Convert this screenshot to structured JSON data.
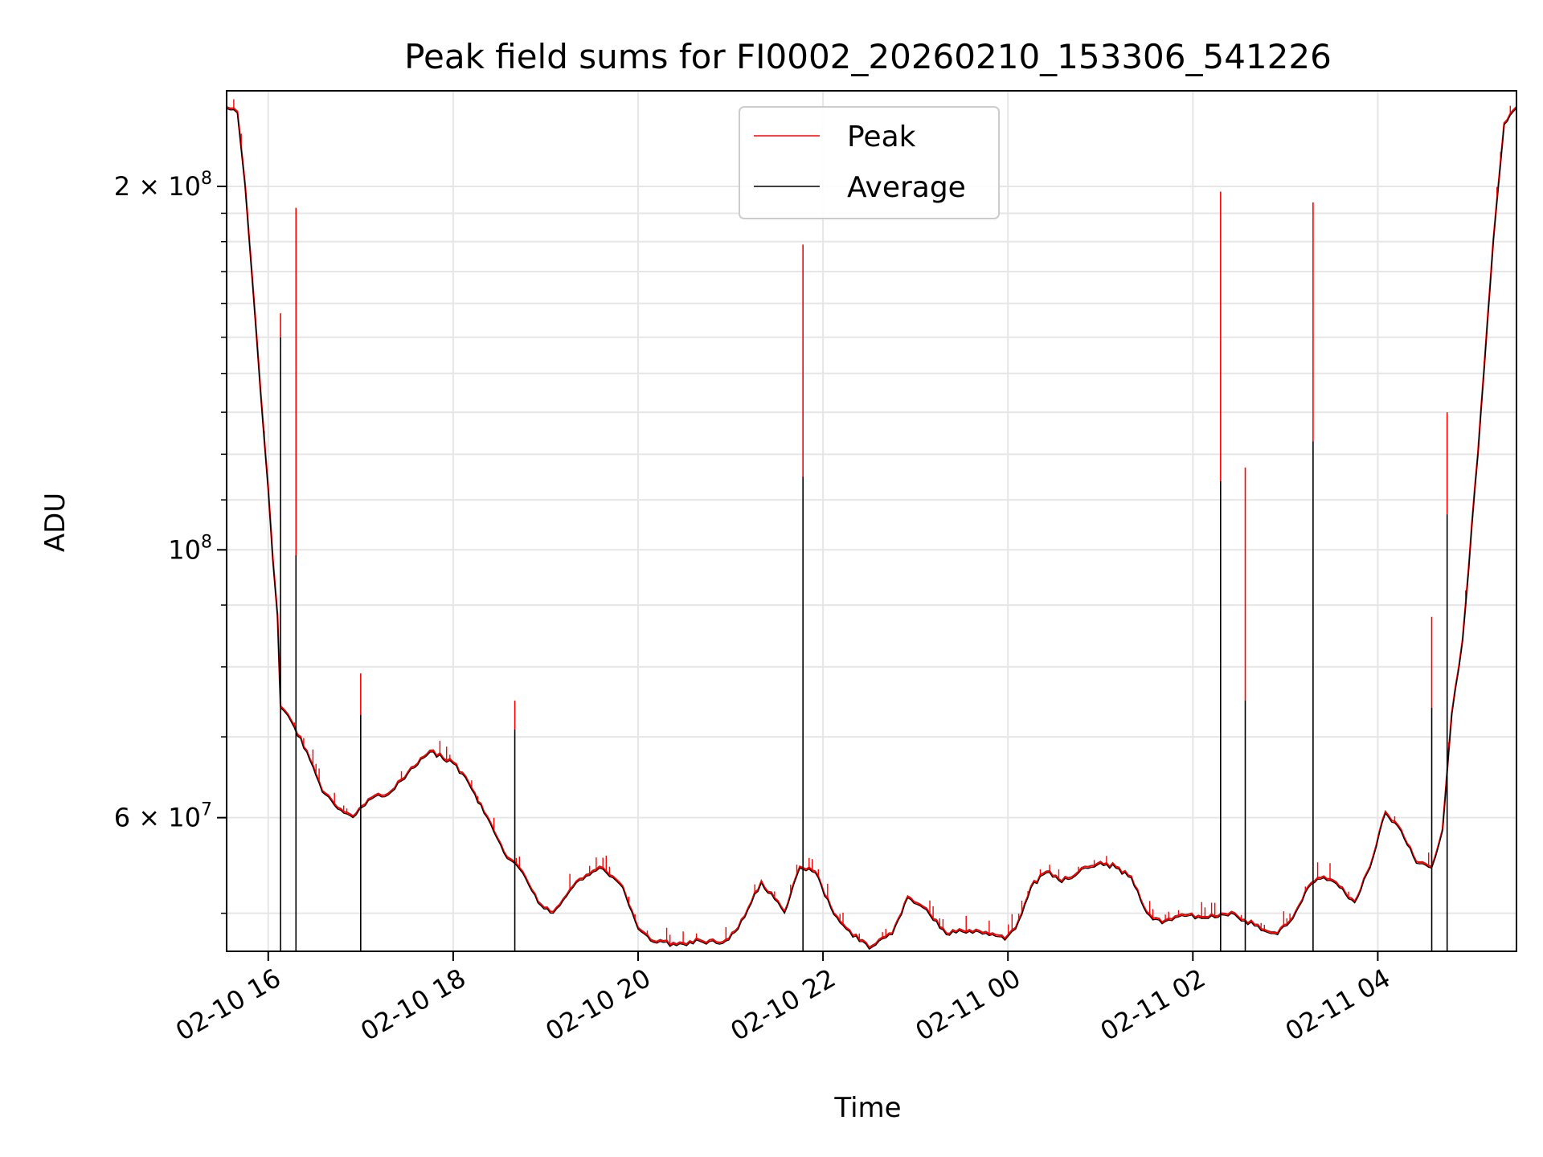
{
  "chart_data": {
    "type": "line",
    "title": "Peak field sums for FI0002_20260210_153306_541226",
    "xlabel": "Time",
    "ylabel": "ADU",
    "yscale": "log",
    "x_range": [
      "02-10 15:33",
      "02-11 05:30"
    ],
    "ylim": [
      46500000,
      240000000
    ],
    "grid": true,
    "legend_position": "upper center",
    "x_ticks": [
      "02-10 16",
      "02-10 18",
      "02-10 20",
      "02-10 22",
      "02-11 00",
      "02-11 02",
      "02-11 04"
    ],
    "y_major_ticks": [
      {
        "value": 100000000,
        "label_base": "10",
        "label_exp": "8"
      },
      {
        "value": 200000000,
        "label_base": "2 × 10",
        "label_exp": "8"
      },
      {
        "value": 60000000,
        "label_base": "6 × 10",
        "label_exp": "7"
      }
    ],
    "series": [
      {
        "name": "Peak",
        "color": "#ff0000"
      },
      {
        "name": "Average",
        "color": "#000000"
      }
    ],
    "average_series": [
      [
        "02-10 15:33",
        232000000
      ],
      [
        "02-10 15:40",
        230000000
      ],
      [
        "02-10 15:45",
        200000000
      ],
      [
        "02-10 15:50",
        165000000
      ],
      [
        "02-10 15:55",
        135000000
      ],
      [
        "02-10 16:00",
        112000000
      ],
      [
        "02-10 16:03",
        98000000
      ],
      [
        "02-10 16:06",
        88000000
      ],
      [
        "02-10 16:08",
        74000000
      ],
      [
        "02-10 16:15",
        72000000
      ],
      [
        "02-10 16:25",
        68000000
      ],
      [
        "02-10 16:35",
        63000000
      ],
      [
        "02-10 16:45",
        61000000
      ],
      [
        "02-10 16:55",
        60000000
      ],
      [
        "02-10 17:05",
        62000000
      ],
      [
        "02-10 17:20",
        63000000
      ],
      [
        "02-10 17:35",
        66000000
      ],
      [
        "02-10 17:45",
        68000000
      ],
      [
        "02-10 18:00",
        66500000
      ],
      [
        "02-10 18:10",
        64000000
      ],
      [
        "02-10 18:20",
        60500000
      ],
      [
        "02-10 18:35",
        55500000
      ],
      [
        "02-10 18:45",
        54000000
      ],
      [
        "02-10 18:55",
        51000000
      ],
      [
        "02-10 19:05",
        50000000
      ],
      [
        "02-10 19:20",
        53000000
      ],
      [
        "02-10 19:35",
        54500000
      ],
      [
        "02-10 19:50",
        52500000
      ],
      [
        "02-10 20:00",
        48500000
      ],
      [
        "02-10 20:10",
        47300000
      ],
      [
        "02-10 20:25",
        47000000
      ],
      [
        "02-10 20:40",
        47400000
      ],
      [
        "02-10 20:55",
        47200000
      ],
      [
        "02-10 21:05",
        48500000
      ],
      [
        "02-10 21:20",
        53000000
      ],
      [
        "02-10 21:35",
        50000000
      ],
      [
        "02-10 21:45",
        54500000
      ],
      [
        "02-10 21:55",
        54000000
      ],
      [
        "02-10 22:05",
        50500000
      ],
      [
        "02-10 22:15",
        48500000
      ],
      [
        "02-10 22:30",
        46700000
      ],
      [
        "02-10 22:45",
        48000000
      ],
      [
        "02-10 22:55",
        51500000
      ],
      [
        "02-10 23:05",
        50500000
      ],
      [
        "02-10 23:20",
        48000000
      ],
      [
        "02-10 23:35",
        48300000
      ],
      [
        "02-10 23:50",
        48000000
      ],
      [
        "02-10 23:58",
        47500000
      ],
      [
        "02-11 00:05",
        48500000
      ],
      [
        "02-11 00:15",
        52500000
      ],
      [
        "02-11 00:25",
        54000000
      ],
      [
        "02-11 00:35",
        53000000
      ],
      [
        "02-11 00:50",
        54500000
      ],
      [
        "02-11 01:00",
        55000000
      ],
      [
        "02-11 01:10",
        54500000
      ],
      [
        "02-11 01:20",
        53500000
      ],
      [
        "02-11 01:30",
        50000000
      ],
      [
        "02-11 01:40",
        49000000
      ],
      [
        "02-11 01:55",
        49700000
      ],
      [
        "02-11 02:10",
        49500000
      ],
      [
        "02-11 02:25",
        50000000
      ],
      [
        "02-11 02:40",
        48800000
      ],
      [
        "02-11 02:55",
        48000000
      ],
      [
        "02-11 03:05",
        49500000
      ],
      [
        "02-11 03:15",
        52500000
      ],
      [
        "02-11 03:25",
        53500000
      ],
      [
        "02-11 03:35",
        52500000
      ],
      [
        "02-11 03:45",
        51000000
      ],
      [
        "02-11 03:55",
        54500000
      ],
      [
        "02-11 04:05",
        60500000
      ],
      [
        "02-11 04:15",
        58500000
      ],
      [
        "02-11 04:25",
        55000000
      ],
      [
        "02-11 04:35",
        54500000
      ],
      [
        "02-11 04:42",
        58500000
      ],
      [
        "02-11 04:48",
        73000000
      ],
      [
        "02-11 04:55",
        84000000
      ],
      [
        "02-11 05:05",
        120000000
      ],
      [
        "02-11 05:15",
        180000000
      ],
      [
        "02-11 05:22",
        225000000
      ],
      [
        "02-11 05:30",
        232000000
      ]
    ],
    "spikes": [
      {
        "x": "02-10 16:08",
        "peak": 157000000,
        "average": 150000000
      },
      {
        "x": "02-10 16:18",
        "peak": 192000000,
        "average": 99000000
      },
      {
        "x": "02-10 17:00",
        "peak": 79000000,
        "average": 73000000
      },
      {
        "x": "02-10 18:40",
        "peak": 75000000,
        "average": 71000000
      },
      {
        "x": "02-10 21:47",
        "peak": 179000000,
        "average": 115000000
      },
      {
        "x": "02-11 02:18",
        "peak": 198000000,
        "average": 114000000
      },
      {
        "x": "02-11 02:34",
        "peak": 117000000,
        "average": 75000000
      },
      {
        "x": "02-11 03:18",
        "peak": 194000000,
        "average": 123000000
      },
      {
        "x": "02-11 04:35",
        "peak": 88000000,
        "average": 74000000
      },
      {
        "x": "02-11 04:45",
        "peak": 130000000,
        "average": 107000000
      }
    ]
  }
}
